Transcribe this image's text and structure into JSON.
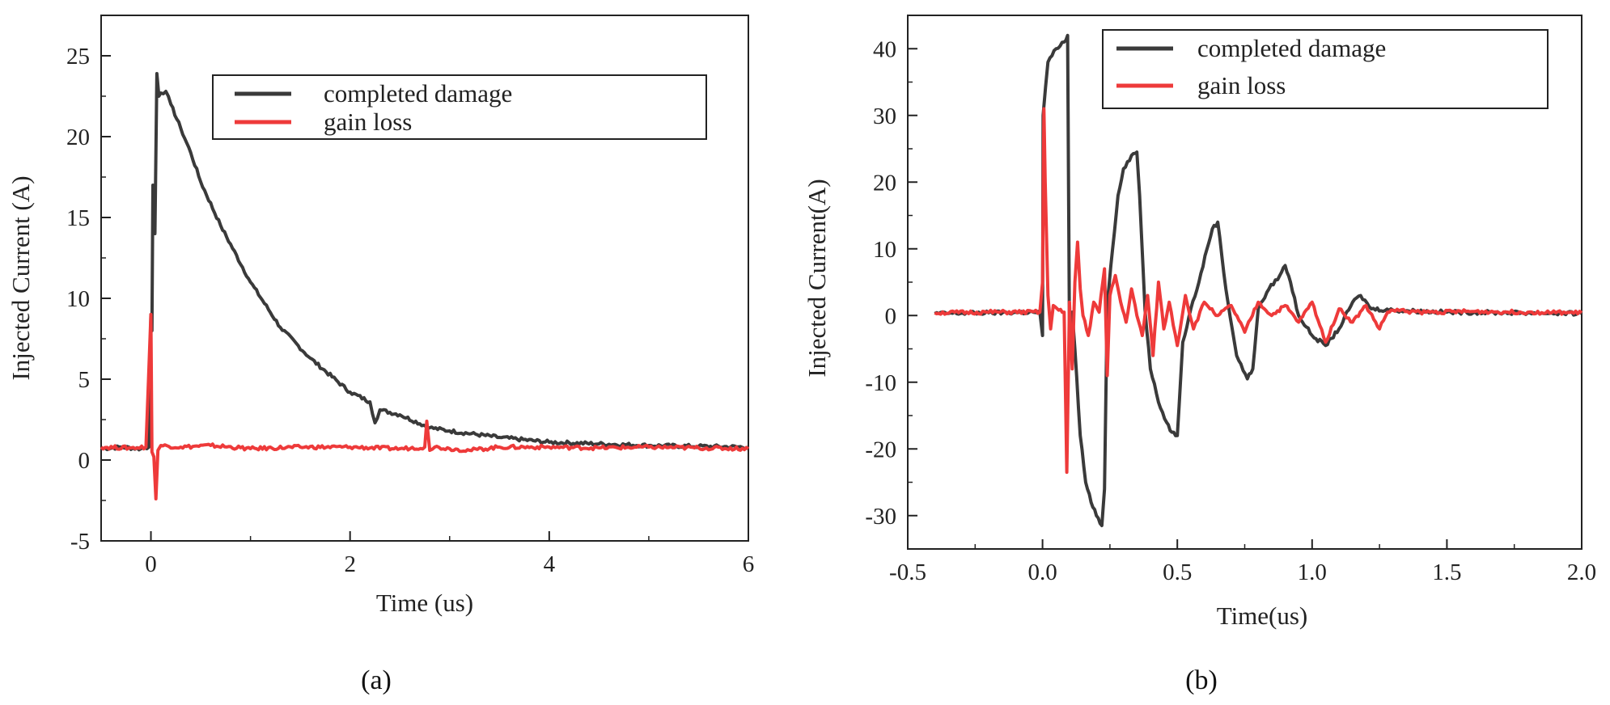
{
  "chart_data": [
    {
      "type": "line",
      "panel_label": "a",
      "xlabel": "Time (us)",
      "ylabel": "Injected Current (A)",
      "xlim": [
        -0.5,
        6
      ],
      "ylim": [
        -5,
        27.5
      ],
      "x_ticks": [
        0,
        2,
        4,
        6
      ],
      "y_ticks": [
        -5,
        0,
        5,
        10,
        15,
        20,
        25
      ],
      "x_tick_labels": [
        "0",
        "2",
        "4",
        "6"
      ],
      "y_tick_labels": [
        "-5",
        "0",
        "5",
        "10",
        "15",
        "20",
        "25"
      ],
      "legend_position": "top-right",
      "series": [
        {
          "name": "completed damage",
          "color": "#3a3a3a",
          "x": [
            -0.5,
            -0.3,
            -0.1,
            -0.02,
            0.0,
            0.01,
            0.02,
            0.04,
            0.06,
            0.08,
            0.1,
            0.15,
            0.2,
            0.3,
            0.4,
            0.5,
            0.7,
            1.0,
            1.3,
            1.6,
            2.0,
            2.2,
            2.25,
            2.3,
            2.5,
            2.8,
            3.0,
            3.5,
            4.0,
            4.5,
            5.0,
            5.5,
            6.0
          ],
          "y": [
            0.7,
            0.8,
            0.7,
            0.8,
            9.0,
            8.0,
            17.0,
            14.0,
            23.9,
            22.5,
            22.7,
            22.8,
            22.0,
            20.5,
            19.0,
            17.2,
            14.5,
            11.0,
            8.2,
            6.3,
            4.2,
            3.6,
            2.3,
            3.1,
            2.8,
            2.0,
            1.8,
            1.4,
            1.1,
            1.0,
            0.9,
            0.85,
            0.8
          ]
        },
        {
          "name": "gain loss",
          "color": "#ee3a3a",
          "x": [
            -0.5,
            -0.2,
            -0.05,
            0.0,
            0.01,
            0.03,
            0.05,
            0.07,
            0.1,
            0.3,
            0.6,
            1.0,
            1.5,
            2.0,
            2.5,
            2.75,
            2.77,
            2.8,
            2.85,
            3.0,
            3.2,
            3.5,
            4.0,
            4.5,
            5.0,
            5.5,
            6.0
          ],
          "y": [
            0.8,
            0.75,
            0.8,
            9.0,
            0.5,
            0.2,
            -2.4,
            0.6,
            0.9,
            0.8,
            0.9,
            0.7,
            0.8,
            0.8,
            0.7,
            0.8,
            2.4,
            0.6,
            0.8,
            0.7,
            0.6,
            0.8,
            0.8,
            0.75,
            0.8,
            0.75,
            0.7
          ]
        }
      ]
    },
    {
      "type": "line",
      "panel_label": "b",
      "xlabel": "Time(us)",
      "ylabel": "Injected Current(A)",
      "xlim": [
        -0.5,
        2.0
      ],
      "ylim": [
        -35,
        45
      ],
      "x_ticks": [
        -0.5,
        0.0,
        0.5,
        1.0,
        1.5,
        2.0
      ],
      "y_ticks": [
        -30,
        -20,
        -10,
        0,
        10,
        20,
        30,
        40
      ],
      "x_tick_labels": [
        "-0.5",
        "0.0",
        "0.5",
        "1.0",
        "1.5",
        "2.0"
      ],
      "y_tick_labels": [
        "-30",
        "-20",
        "-10",
        "0",
        "10",
        "20",
        "30",
        "40"
      ],
      "legend_position": "top-right",
      "series": [
        {
          "name": "completed damage",
          "color": "#3a3a3a",
          "x": [
            -0.4,
            -0.2,
            -0.01,
            0.0,
            0.002,
            0.02,
            0.05,
            0.08,
            0.093,
            0.1,
            0.11,
            0.12,
            0.14,
            0.16,
            0.18,
            0.2,
            0.22,
            0.23,
            0.24,
            0.26,
            0.28,
            0.3,
            0.33,
            0.35,
            0.36,
            0.38,
            0.4,
            0.43,
            0.46,
            0.48,
            0.5,
            0.52,
            0.55,
            0.58,
            0.61,
            0.63,
            0.65,
            0.68,
            0.72,
            0.76,
            0.78,
            0.8,
            0.84,
            0.88,
            0.9,
            0.92,
            0.95,
            1.0,
            1.05,
            1.1,
            1.15,
            1.18,
            1.22,
            1.3,
            1.5,
            1.8,
            2.0
          ],
          "y": [
            0.3,
            0.4,
            0.5,
            -3.0,
            30.0,
            38.0,
            40.0,
            41.0,
            42.0,
            -3.0,
            0.5,
            -5.0,
            -18.0,
            -25.0,
            -28.0,
            -30.0,
            -31.5,
            -26.0,
            2.0,
            10.0,
            18.0,
            22.0,
            24.0,
            24.5,
            18.0,
            1.0,
            -8.0,
            -13.0,
            -16.0,
            -17.5,
            -18.0,
            -4.0,
            1.0,
            5.0,
            10.0,
            13.0,
            14.0,
            4.0,
            -6.0,
            -9.5,
            -8.0,
            1.0,
            4.0,
            6.0,
            7.5,
            5.0,
            0.0,
            -3.0,
            -4.5,
            -2.0,
            2.0,
            3.0,
            1.0,
            0.8,
            0.5,
            0.4,
            0.3
          ]
        },
        {
          "name": "gain loss",
          "color": "#ee3a3a",
          "x": [
            -0.4,
            -0.2,
            -0.01,
            0.0,
            0.005,
            0.01,
            0.02,
            0.03,
            0.04,
            0.06,
            0.08,
            0.09,
            0.1,
            0.11,
            0.12,
            0.13,
            0.14,
            0.15,
            0.17,
            0.19,
            0.21,
            0.23,
            0.24,
            0.25,
            0.27,
            0.29,
            0.31,
            0.33,
            0.35,
            0.37,
            0.39,
            0.41,
            0.43,
            0.45,
            0.47,
            0.5,
            0.53,
            0.56,
            0.6,
            0.65,
            0.7,
            0.75,
            0.8,
            0.85,
            0.9,
            0.95,
            1.0,
            1.05,
            1.1,
            1.15,
            1.2,
            1.25,
            1.28,
            1.3,
            1.4,
            1.6,
            1.8,
            2.0
          ],
          "y": [
            0.4,
            0.5,
            0.5,
            5.0,
            31.0,
            20.0,
            3.0,
            -2.0,
            1.5,
            0.8,
            0.5,
            -23.5,
            2.0,
            -8.0,
            5.0,
            11.0,
            4.0,
            0.0,
            -3.0,
            2.0,
            0.5,
            7.0,
            -9.0,
            3.0,
            6.0,
            2.0,
            -1.0,
            4.0,
            0.0,
            -3.0,
            3.0,
            -6.0,
            5.0,
            -2.0,
            2.0,
            -4.5,
            3.0,
            -2.0,
            2.0,
            0.0,
            1.5,
            -2.5,
            2.0,
            0.0,
            1.5,
            -1.0,
            2.0,
            -4.0,
            1.0,
            -1.0,
            1.5,
            -2.0,
            0.5,
            0.8,
            0.5,
            0.6,
            0.5,
            0.4
          ]
        }
      ]
    }
  ],
  "captions": [
    "(a)",
    "(b)"
  ]
}
